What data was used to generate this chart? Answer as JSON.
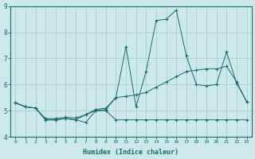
{
  "xlabel": "Humidex (Indice chaleur)",
  "background_color": "#cce8e8",
  "line_color": "#1a6b6b",
  "grid_color": "#aacfcf",
  "xlim": [
    -0.5,
    23.5
  ],
  "ylim": [
    4.0,
    9.0
  ],
  "yticks": [
    4,
    5,
    6,
    7,
    8,
    9
  ],
  "xticks": [
    0,
    1,
    2,
    3,
    4,
    5,
    6,
    7,
    8,
    9,
    10,
    11,
    12,
    13,
    14,
    15,
    16,
    17,
    18,
    19,
    20,
    21,
    22,
    23
  ],
  "line_min_x": [
    0,
    1,
    2,
    3,
    4,
    5,
    6,
    7,
    8,
    9,
    10,
    11,
    12,
    13,
    14,
    15,
    16,
    17,
    18,
    19,
    20,
    21,
    22,
    23
  ],
  "line_min_y": [
    5.3,
    5.15,
    5.1,
    4.65,
    4.65,
    4.7,
    4.65,
    4.55,
    5.0,
    5.0,
    4.65,
    4.65,
    4.65,
    4.65,
    4.65,
    4.65,
    4.65,
    4.65,
    4.65,
    4.65,
    4.65,
    4.65,
    4.65,
    4.65
  ],
  "line_mean_x": [
    0,
    1,
    2,
    3,
    4,
    5,
    6,
    7,
    8,
    9,
    10,
    11,
    12,
    13,
    14,
    15,
    16,
    17,
    18,
    19,
    20,
    21,
    22,
    23
  ],
  "line_mean_y": [
    5.3,
    5.15,
    5.1,
    4.7,
    4.7,
    4.75,
    4.72,
    4.85,
    5.05,
    5.1,
    5.5,
    5.55,
    5.6,
    5.7,
    5.9,
    6.1,
    6.3,
    6.5,
    6.55,
    6.6,
    6.6,
    6.7,
    6.1,
    5.35
  ],
  "line_max_x": [
    0,
    1,
    2,
    3,
    4,
    5,
    6,
    7,
    8,
    9,
    10,
    11,
    12,
    13,
    14,
    15,
    16,
    17,
    18,
    19,
    20,
    21,
    22,
    23
  ],
  "line_max_y": [
    5.3,
    5.15,
    5.1,
    4.65,
    4.65,
    4.7,
    4.65,
    4.85,
    5.0,
    5.05,
    5.5,
    7.45,
    5.15,
    6.5,
    8.45,
    8.5,
    8.85,
    7.1,
    6.0,
    5.95,
    6.0,
    7.25,
    6.05,
    5.35
  ]
}
